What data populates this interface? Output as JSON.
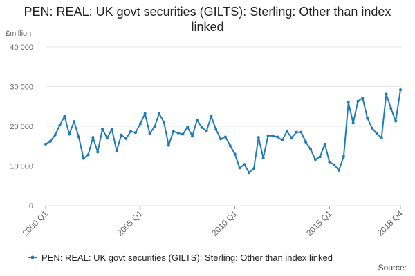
{
  "chart_data": {
    "type": "line",
    "title": "PEN: REAL: UK govt securities (GILTS): Sterling: Other than index linked",
    "y_unit_label": "£million",
    "source": "Source:",
    "categories": [
      "2000 Q1",
      null,
      null,
      null,
      null,
      null,
      null,
      null,
      null,
      null,
      null,
      null,
      null,
      null,
      null,
      null,
      null,
      null,
      null,
      null,
      "2005 Q1",
      null,
      null,
      null,
      null,
      null,
      null,
      null,
      null,
      null,
      null,
      null,
      null,
      null,
      null,
      null,
      null,
      null,
      null,
      null,
      "2010 Q1",
      null,
      null,
      null,
      null,
      null,
      null,
      null,
      null,
      null,
      null,
      null,
      null,
      null,
      null,
      null,
      null,
      null,
      null,
      null,
      "2015 Q1",
      null,
      null,
      null,
      null,
      null,
      null,
      null,
      null,
      null,
      null,
      null,
      null,
      null,
      null,
      "2018 Q4"
    ],
    "series": [
      {
        "name": "PEN: REAL: UK govt securities (GILTS): Sterling: Other than index linked",
        "color": "#1f7bb6",
        "values": [
          15.5,
          16.2,
          17.8,
          20.3,
          22.5,
          18.0,
          21.2,
          17.3,
          11.9,
          12.8,
          17.2,
          13.5,
          19.3,
          17.0,
          19.3,
          13.8,
          17.8,
          16.9,
          18.7,
          18.4,
          20.6,
          23.2,
          18.2,
          19.8,
          23.2,
          21.0,
          15.2,
          18.7,
          18.3,
          18.0,
          19.8,
          17.5,
          21.6,
          19.7,
          18.8,
          22.5,
          19.2,
          16.8,
          17.3,
          15.1,
          13.0,
          9.5,
          10.4,
          8.3,
          9.3,
          17.2,
          12.0,
          17.6,
          17.6,
          17.3,
          16.5,
          18.7,
          17.1,
          18.5,
          18.5,
          16.0,
          14.2,
          11.6,
          12.3,
          15.5,
          11.0,
          10.3,
          8.9,
          12.4,
          26.0,
          20.8,
          26.3,
          27.1,
          22.1,
          19.5,
          18.1,
          17.1,
          28.1,
          24.5,
          21.3,
          29.2
        ]
      }
    ],
    "value_scale": 1000,
    "ylim": [
      0,
      40000
    ],
    "yticks": [
      0,
      {
        "value": 10000,
        "label": "10 000"
      },
      {
        "value": 20000,
        "label": "20 000"
      },
      {
        "value": 30000,
        "label": "30 000"
      },
      {
        "value": 40000,
        "label": "40 000"
      }
    ],
    "grid": true
  }
}
